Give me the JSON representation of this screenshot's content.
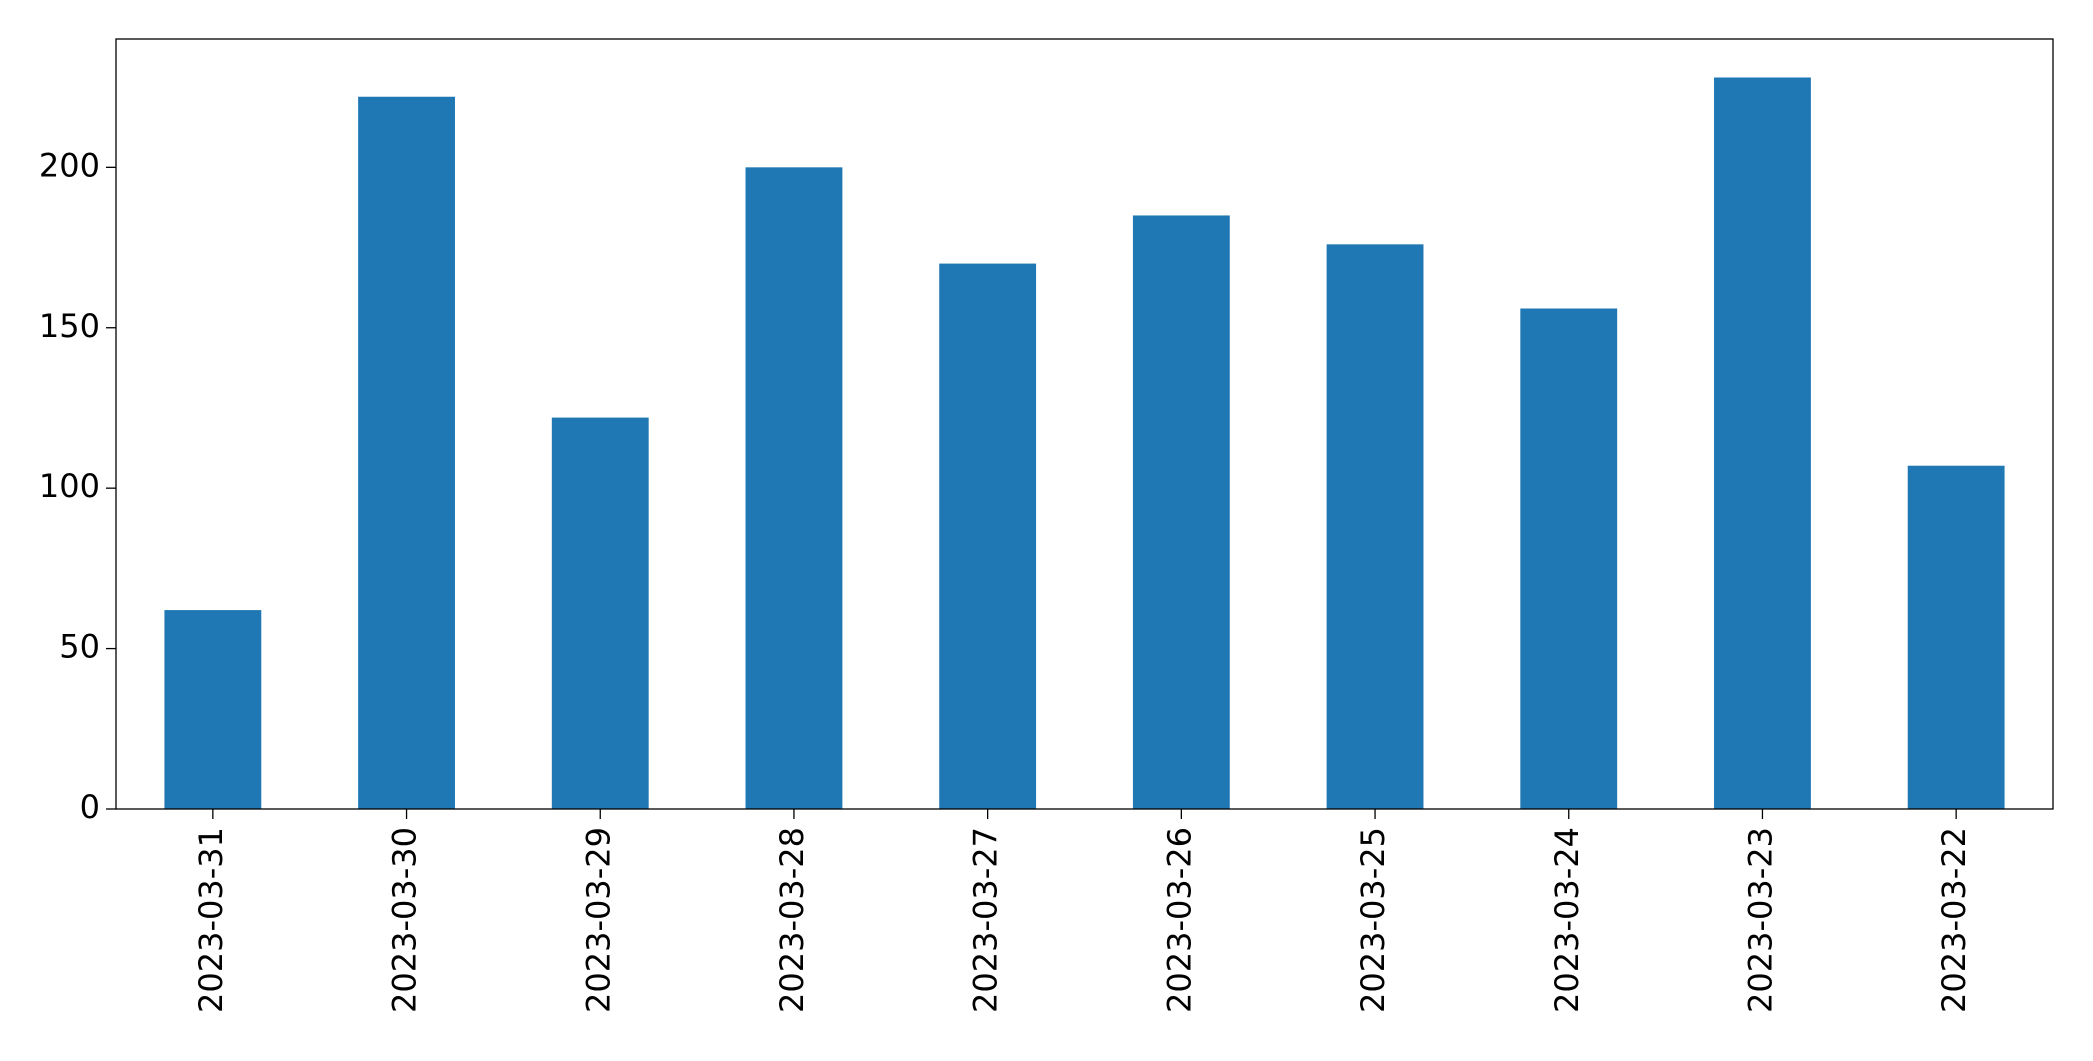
{
  "chart_data": {
    "type": "bar",
    "categories": [
      "2023-03-31",
      "2023-03-30",
      "2023-03-29",
      "2023-03-28",
      "2023-03-27",
      "2023-03-26",
      "2023-03-25",
      "2023-03-24",
      "2023-03-23",
      "2023-03-22"
    ],
    "values": [
      62,
      222,
      122,
      200,
      170,
      185,
      176,
      156,
      228,
      107
    ],
    "color": "#1f77b4",
    "ylim": [
      0,
      240
    ],
    "yticks": [
      0,
      50,
      100,
      150,
      200
    ],
    "grid": false
  }
}
